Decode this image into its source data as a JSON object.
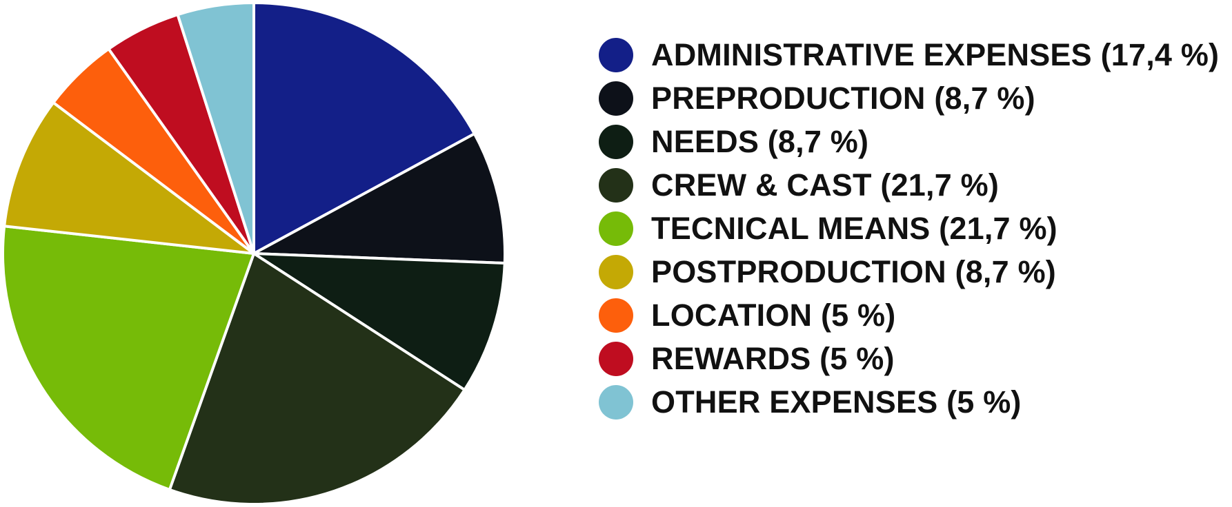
{
  "chart_data": {
    "type": "pie",
    "title": "",
    "legend_position": "right",
    "start": "12 o'clock",
    "direction": "clockwise",
    "slices": [
      {
        "legend_label": "ADMINISTRATIVE EXPENSES (17,4 %)",
        "value": 17.4,
        "color": "#131f88"
      },
      {
        "legend_label": "PREPRODUCTION (8,7 %)",
        "value": 8.7,
        "color": "#0d1119"
      },
      {
        "legend_label": "NEEDS (8,7 %)",
        "value": 8.7,
        "color": "#0e1e14"
      },
      {
        "legend_label": "CREW & CAST (21,7 %)",
        "value": 21.7,
        "color": "#233118"
      },
      {
        "legend_label": "TECNICAL MEANS (21,7 %)",
        "value": 21.7,
        "color": "#76bb08"
      },
      {
        "legend_label": "POSTPRODUCTION (8,7 %)",
        "value": 8.7,
        "color": "#c4a905"
      },
      {
        "legend_label": "LOCATION (5 %)",
        "value": 5,
        "color": "#fd5f0c"
      },
      {
        "legend_label": "REWARDS (5 %)",
        "value": 5,
        "color": "#bf0d20"
      },
      {
        "legend_label": "OTHER EXPENSES (5 %)",
        "value": 5,
        "color": "#80c3d3"
      }
    ]
  }
}
